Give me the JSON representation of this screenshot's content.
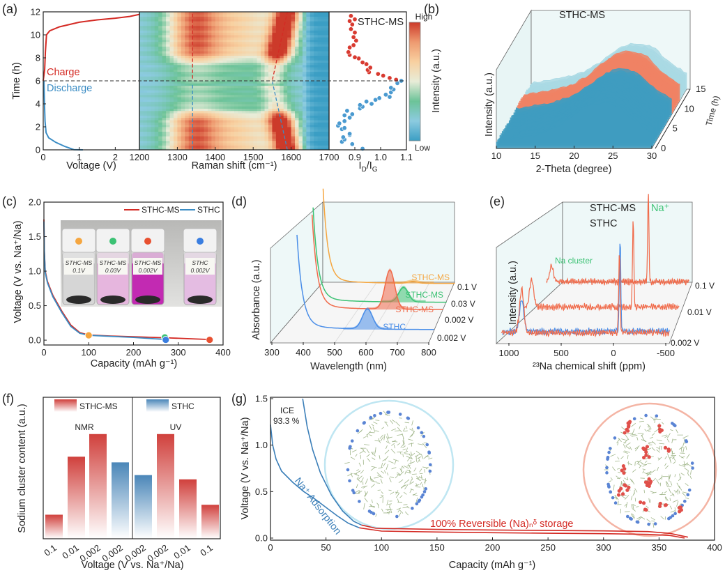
{
  "panel_labels": {
    "a": "(a)",
    "b": "(b)",
    "c": "(c)",
    "d": "(d)",
    "e": "(e)",
    "f": "(f)",
    "g": "(g)"
  },
  "colors": {
    "charge": "#d42a24",
    "discharge": "#3a8cc4",
    "sthc_ms": "#f06a4a",
    "sthc": "#4a8ee8",
    "orange": "#f5a640",
    "green": "#3cc274",
    "bar_red": "#d0403c",
    "bar_blue": "#4a86b8"
  },
  "chart_data": [
    {
      "id": "a-voltage",
      "type": "line",
      "ylabel": "Time (h)",
      "xlabel": "Voltage (V)",
      "xlim": [
        0,
        2.67
      ],
      "ylim": [
        0,
        12
      ],
      "xticks": [
        "0",
        "1",
        "2"
      ],
      "yticks": [
        "0",
        "2",
        "4",
        "6",
        "8",
        "10",
        "12"
      ],
      "series": [
        {
          "label": "Discharge",
          "color": "#3a8cc4",
          "points": [
            [
              1.1,
              0
            ],
            [
              0.85,
              0.02
            ],
            [
              0.6,
              0.3
            ],
            [
              0.35,
              0.65
            ],
            [
              0.15,
              1.05
            ],
            [
              0.08,
              1.5
            ],
            [
              0.05,
              2.5
            ],
            [
              0.035,
              4
            ],
            [
              0.02,
              6
            ]
          ]
        },
        {
          "label": "Charge",
          "color": "#d42a24",
          "points": [
            [
              0,
              6
            ],
            [
              0.04,
              7
            ],
            [
              0.06,
              8.5
            ],
            [
              0.09,
              10
            ],
            [
              0.18,
              10.35
            ],
            [
              0.45,
              10.7
            ],
            [
              1.0,
              11.1
            ],
            [
              1.5,
              11.3
            ],
            [
              2.0,
              11.45
            ],
            [
              2.4,
              11.6
            ],
            [
              2.67,
              11.78
            ]
          ]
        }
      ],
      "reference_line": {
        "time": 6,
        "style": "dashed"
      }
    },
    {
      "id": "a-raman",
      "type": "heatmap",
      "xlabel": "Raman shift (cm⁻¹)",
      "xlim": [
        1200,
        1700
      ],
      "ylim": [
        0,
        12
      ],
      "xticks": [
        "1200",
        "1300",
        "1400",
        "1500",
        "1600",
        "1700"
      ],
      "D_band": 1340,
      "G_band": [
        {
          "time": 0,
          "shift": 1590
        },
        {
          "time": 6,
          "shift": 1550
        },
        {
          "time": 12,
          "shift": 1590
        }
      ],
      "colorbar": {
        "label": "Intensity (a.u.)",
        "high": "High",
        "low": "Low",
        "colors": [
          "#3b9ec4",
          "#8ccbe0",
          "#6cc398",
          "#e8ecd8",
          "#f8d0a0",
          "#ee9a70",
          "#cc3a2a"
        ]
      }
    },
    {
      "id": "a-idig",
      "type": "scatter",
      "xlabel": {
        "i1": "I",
        "s1": "D",
        "i2": "/I",
        "s2": "G"
      },
      "xlim": [
        0.8,
        1.1
      ],
      "ylim": [
        0,
        12
      ],
      "xticks": [
        "0.9",
        "1.0",
        "1.1"
      ],
      "label": "STHC-MS",
      "series": [
        {
          "label": "Discharge",
          "color": "#4a9ad0",
          "points": [
            [
              0.93,
              0.1
            ],
            [
              0.89,
              0.5
            ],
            [
              0.85,
              0.7
            ],
            [
              0.86,
              0.9
            ],
            [
              0.855,
              1.1
            ],
            [
              0.88,
              1.3
            ],
            [
              0.88,
              1.4
            ],
            [
              0.85,
              1.8
            ],
            [
              0.86,
              1.9
            ],
            [
              0.835,
              2.1
            ],
            [
              0.84,
              2.3
            ],
            [
              0.86,
              2.5
            ],
            [
              0.88,
              2.8
            ],
            [
              0.86,
              3.0
            ],
            [
              0.89,
              3.1
            ],
            [
              0.87,
              3.4
            ],
            [
              0.92,
              3.6
            ],
            [
              0.93,
              3.75
            ],
            [
              0.92,
              3.9
            ],
            [
              0.965,
              4.0
            ],
            [
              0.945,
              4.2
            ],
            [
              0.98,
              4.35
            ],
            [
              0.995,
              4.5
            ],
            [
              1.035,
              4.6
            ],
            [
              1.02,
              4.8
            ],
            [
              1.04,
              5.0
            ],
            [
              1.05,
              5.25
            ],
            [
              1.04,
              5.4
            ],
            [
              1.065,
              5.8
            ],
            [
              1.08,
              6.0
            ]
          ]
        },
        {
          "label": "Charge",
          "color": "#d83a30",
          "points": [
            [
              1.06,
              6.1
            ],
            [
              1.035,
              6.25
            ],
            [
              1.01,
              6.45
            ],
            [
              0.99,
              6.6
            ],
            [
              0.955,
              6.75
            ],
            [
              0.95,
              6.95
            ],
            [
              0.96,
              7.15
            ],
            [
              0.945,
              7.45
            ],
            [
              0.93,
              7.6
            ],
            [
              0.915,
              7.95
            ],
            [
              0.9,
              8.05
            ],
            [
              0.88,
              8.25
            ],
            [
              0.875,
              8.5
            ],
            [
              0.88,
              8.9
            ],
            [
              0.895,
              9.1
            ],
            [
              0.905,
              9.5
            ],
            [
              0.895,
              9.8
            ],
            [
              0.9,
              10.2
            ],
            [
              0.885,
              10.5
            ],
            [
              0.89,
              10.9
            ],
            [
              0.88,
              11.2
            ],
            [
              0.9,
              11.35
            ],
            [
              0.885,
              11.65
            ]
          ]
        }
      ]
    },
    {
      "id": "b-xrd",
      "type": "surface",
      "label": "STHC-MS",
      "xlabel": "2-Theta (degree)",
      "ylabel": "Intensity (a.u.)",
      "zlabel": "Time (h)",
      "xlim": [
        10,
        30
      ],
      "zlim": [
        0,
        15
      ],
      "xticks": [
        "10",
        "15",
        "20",
        "25",
        "30"
      ],
      "zticks": [
        "0",
        "5",
        "10",
        "15"
      ],
      "color_segments": [
        {
          "from": 0,
          "to": 8.5,
          "color": "#3f9cc0"
        },
        {
          "from": 8.5,
          "to": 12,
          "color": "#f08264"
        },
        {
          "from": 12,
          "to": 15,
          "color": "#a9d9e4"
        }
      ]
    },
    {
      "id": "c-capacity",
      "type": "line",
      "xlabel": "Capacity (mAh g⁻¹)",
      "ylabel": "Voltage (V vs. Na⁺/Na)",
      "xlim": [
        0,
        400
      ],
      "ylim": [
        -0.07,
        2.0
      ],
      "xticks": [
        "0",
        "100",
        "200",
        "300",
        "400"
      ],
      "yticks": [
        "0.0",
        "0.5",
        "1.0",
        "1.5",
        "2.0"
      ],
      "legend": "top-right",
      "series": [
        {
          "label": "STHC-MS",
          "color": "#d42a24",
          "points": [
            [
              0,
              1.75
            ],
            [
              1,
              1.3
            ],
            [
              3,
              1.0
            ],
            [
              8,
              0.85
            ],
            [
              20,
              0.65
            ],
            [
              40,
              0.42
            ],
            [
              60,
              0.22
            ],
            [
              80,
              0.11
            ],
            [
              100,
              0.075
            ],
            [
              150,
              0.06
            ],
            [
              200,
              0.05
            ],
            [
              270,
              0.035
            ],
            [
              330,
              0.02
            ],
            [
              370,
              0.01
            ]
          ]
        },
        {
          "label": "STHC",
          "color": "#3a8cc4",
          "points": [
            [
              0,
              1.72
            ],
            [
              1,
              1.28
            ],
            [
              3,
              0.98
            ],
            [
              8,
              0.83
            ],
            [
              20,
              0.63
            ],
            [
              40,
              0.4
            ],
            [
              60,
              0.2
            ],
            [
              80,
              0.1
            ],
            [
              100,
              0.07
            ],
            [
              150,
              0.055
            ],
            [
              200,
              0.04
            ],
            [
              272,
              0.01
            ]
          ]
        }
      ],
      "markers": [
        {
          "capacity": 100,
          "voltage": 0.07,
          "color": "#f5a640"
        },
        {
          "capacity": 270,
          "voltage": 0.04,
          "color": "#3cc274"
        },
        {
          "capacity": 272,
          "voltage": 0.005,
          "color": "#3a7ee0"
        },
        {
          "capacity": 370,
          "voltage": 0.005,
          "color": "#e85030"
        }
      ],
      "inset_vials": [
        {
          "line1": "STHC-MS",
          "line2": "0.1V",
          "liquid": "#d6d6d6",
          "dot": "#f5a640"
        },
        {
          "line1": "STHC-MS",
          "line2": "0.03V",
          "liquid": "#e6b6de",
          "dot": "#3cc274"
        },
        {
          "line1": "STHC-MS",
          "line2": "0.002V",
          "liquid": "#c22ab2",
          "dot": "#e85030"
        },
        {
          "line1": "STHC",
          "line2": "0.002V",
          "liquid": "#e4bce2",
          "dot": "#3a7ee0"
        }
      ]
    },
    {
      "id": "d-uv",
      "type": "line",
      "xlabel": "Wavelength (nm)",
      "ylabel": "Absorbance (a.u.)",
      "xlim": [
        300,
        800
      ],
      "xticks": [
        "300",
        "400",
        "500",
        "600",
        "700",
        "800"
      ],
      "series": [
        {
          "label": "STHC",
          "voltage": "0.002 V",
          "color": "#4a8ee8",
          "start_nm": 345,
          "peak_nm": 578,
          "peak": 0.22
        },
        {
          "label": "STHC-MS",
          "voltage": "0.002 V",
          "color": "#f06a4a",
          "start_nm": 340,
          "peak_nm": 612,
          "peak": 0.43
        },
        {
          "label": "STHC-MS",
          "voltage": "0.03 V",
          "color": "#3cc274",
          "start_nm": 322,
          "peak_nm": 645,
          "peak": 0.16
        },
        {
          "label": "STHC-MS",
          "voltage": "0.1 V",
          "color": "#f5a640",
          "start_nm": 300,
          "peak_nm": 640,
          "peak": 0.02
        }
      ]
    },
    {
      "id": "e-nmr",
      "type": "line",
      "xlabel": "²³Na chemical shift (ppm)",
      "ylabel": "Intensity (a.u.)",
      "xlim": [
        1150,
        -500
      ],
      "xticks": [
        "1000",
        "500",
        "0",
        "-500"
      ],
      "legend": "top-right",
      "annotations": {
        "cluster": "Na cluster",
        "ion": "Na⁺"
      },
      "legend_entries": [
        {
          "label": "STHC-MS",
          "color": "#f06a4a"
        },
        {
          "label": "STHC",
          "color": "#4a8ee8"
        }
      ],
      "series": [
        {
          "label": "STHC-MS",
          "voltage": "0.002 V",
          "color": "#f06a4a",
          "peaks": [
            {
              "ppm": 950,
              "height": 0.62
            },
            {
              "ppm": -10,
              "height": 1.2
            }
          ]
        },
        {
          "label": "STHC",
          "voltage": "0.002 V",
          "color": "#4a8ee8",
          "peaks": [
            {
              "ppm": 960,
              "height": 0.46
            },
            {
              "ppm": -10,
              "height": 1.35
            }
          ]
        },
        {
          "label": "STHC-MS",
          "voltage": "0.01 V",
          "color": "#f06a4a",
          "peaks": [
            {
              "ppm": 1070,
              "height": 0.38
            },
            {
              "ppm": -10,
              "height": 1.28
            }
          ]
        },
        {
          "label": "STHC-MS",
          "voltage": "0.1 V",
          "color": "#f06a4a",
          "peaks": [
            {
              "ppm": 1090,
              "height": 0.22
            },
            {
              "ppm": -30,
              "height": 1.3
            }
          ]
        }
      ],
      "voltage_labels": [
        "0.1 V",
        "0.01 V",
        "0.002 V"
      ]
    },
    {
      "id": "f-cluster",
      "type": "bar",
      "xlabel": "Voltage (V vs. Na⁺/Na)",
      "ylabel": "Sodium cluster content (a.u.)",
      "ylim": [
        0,
        1
      ],
      "groups": [
        {
          "label": "NMR"
        },
        {
          "label": "UV"
        }
      ],
      "legend_entries": [
        {
          "label": "STHC-MS",
          "color": "#d0403c"
        },
        {
          "label": "STHC",
          "color": "#4a86b8"
        }
      ],
      "bars": [
        {
          "category": "0.1",
          "group": "NMR",
          "sample": "STHC-MS",
          "value": 0.17
        },
        {
          "category": "0.01",
          "group": "NMR",
          "sample": "STHC-MS",
          "value": 0.58
        },
        {
          "category": "0.002",
          "group": "NMR",
          "sample": "STHC-MS",
          "value": 0.74
        },
        {
          "category": "0.002",
          "group": "NMR",
          "sample": "STHC",
          "value": 0.54
        },
        {
          "category": "0.002",
          "group": "UV",
          "sample": "STHC",
          "value": 0.45
        },
        {
          "category": "0.002",
          "group": "UV",
          "sample": "STHC-MS",
          "value": 0.74
        },
        {
          "category": "0.01",
          "group": "UV",
          "sample": "STHC-MS",
          "value": 0.42
        },
        {
          "category": "0.1",
          "group": "UV",
          "sample": "STHC-MS",
          "value": 0.24
        }
      ]
    },
    {
      "id": "g-profile",
      "type": "line",
      "xlabel": "Capacity (mAh g⁻¹)",
      "ylabel": "Voltage (V vs. Na⁺/Na)",
      "xlim": [
        0,
        400
      ],
      "ylim": [
        0,
        1.5
      ],
      "xticks": [
        "0",
        "50",
        "100",
        "150",
        "200",
        "250",
        "300",
        "350",
        "400"
      ],
      "yticks": [
        "0.0",
        "0.5",
        "1.0",
        "1.5"
      ],
      "annotations": {
        "ice_label": "ICE",
        "ice_value": "93.3 %",
        "adsorption": "Na⁺ Adsorption",
        "storage": "100% Reversible (Na)ₙᵟ storage"
      },
      "series": [
        {
          "color": "#3a7eb8",
          "points": [
            [
              0,
              1.22
            ],
            [
              2,
              1.0
            ],
            [
              5,
              0.85
            ],
            [
              10,
              0.72
            ],
            [
              20,
              0.6
            ],
            [
              30,
              0.5
            ],
            [
              40,
              0.42
            ],
            [
              50,
              0.33
            ],
            [
              60,
              0.24
            ],
            [
              70,
              0.16
            ],
            [
              80,
              0.11
            ]
          ]
        },
        {
          "color": "#d42a24",
          "points": [
            [
              80,
              0.11
            ],
            [
              100,
              0.075
            ],
            [
              150,
              0.065
            ],
            [
              200,
              0.058
            ],
            [
              250,
              0.052
            ],
            [
              300,
              0.047
            ],
            [
              340,
              0.04
            ],
            [
              360,
              0.028
            ],
            [
              373,
              0
            ]
          ]
        },
        {
          "color": "#3a7eb8",
          "points": [
            [
              29,
              1.5
            ],
            [
              33,
              1.2
            ],
            [
              38,
              0.95
            ],
            [
              45,
              0.7
            ],
            [
              55,
              0.46
            ],
            [
              65,
              0.29
            ],
            [
              75,
              0.18
            ],
            [
              82,
              0.14
            ]
          ]
        },
        {
          "color": "#d42a24",
          "points": [
            [
              82,
              0.14
            ],
            [
              95,
              0.105
            ],
            [
              150,
              0.093
            ],
            [
              200,
              0.087
            ],
            [
              250,
              0.082
            ],
            [
              300,
              0.077
            ],
            [
              340,
              0.07
            ],
            [
              360,
              0.05
            ],
            [
              376,
              0.01
            ]
          ]
        }
      ]
    }
  ]
}
